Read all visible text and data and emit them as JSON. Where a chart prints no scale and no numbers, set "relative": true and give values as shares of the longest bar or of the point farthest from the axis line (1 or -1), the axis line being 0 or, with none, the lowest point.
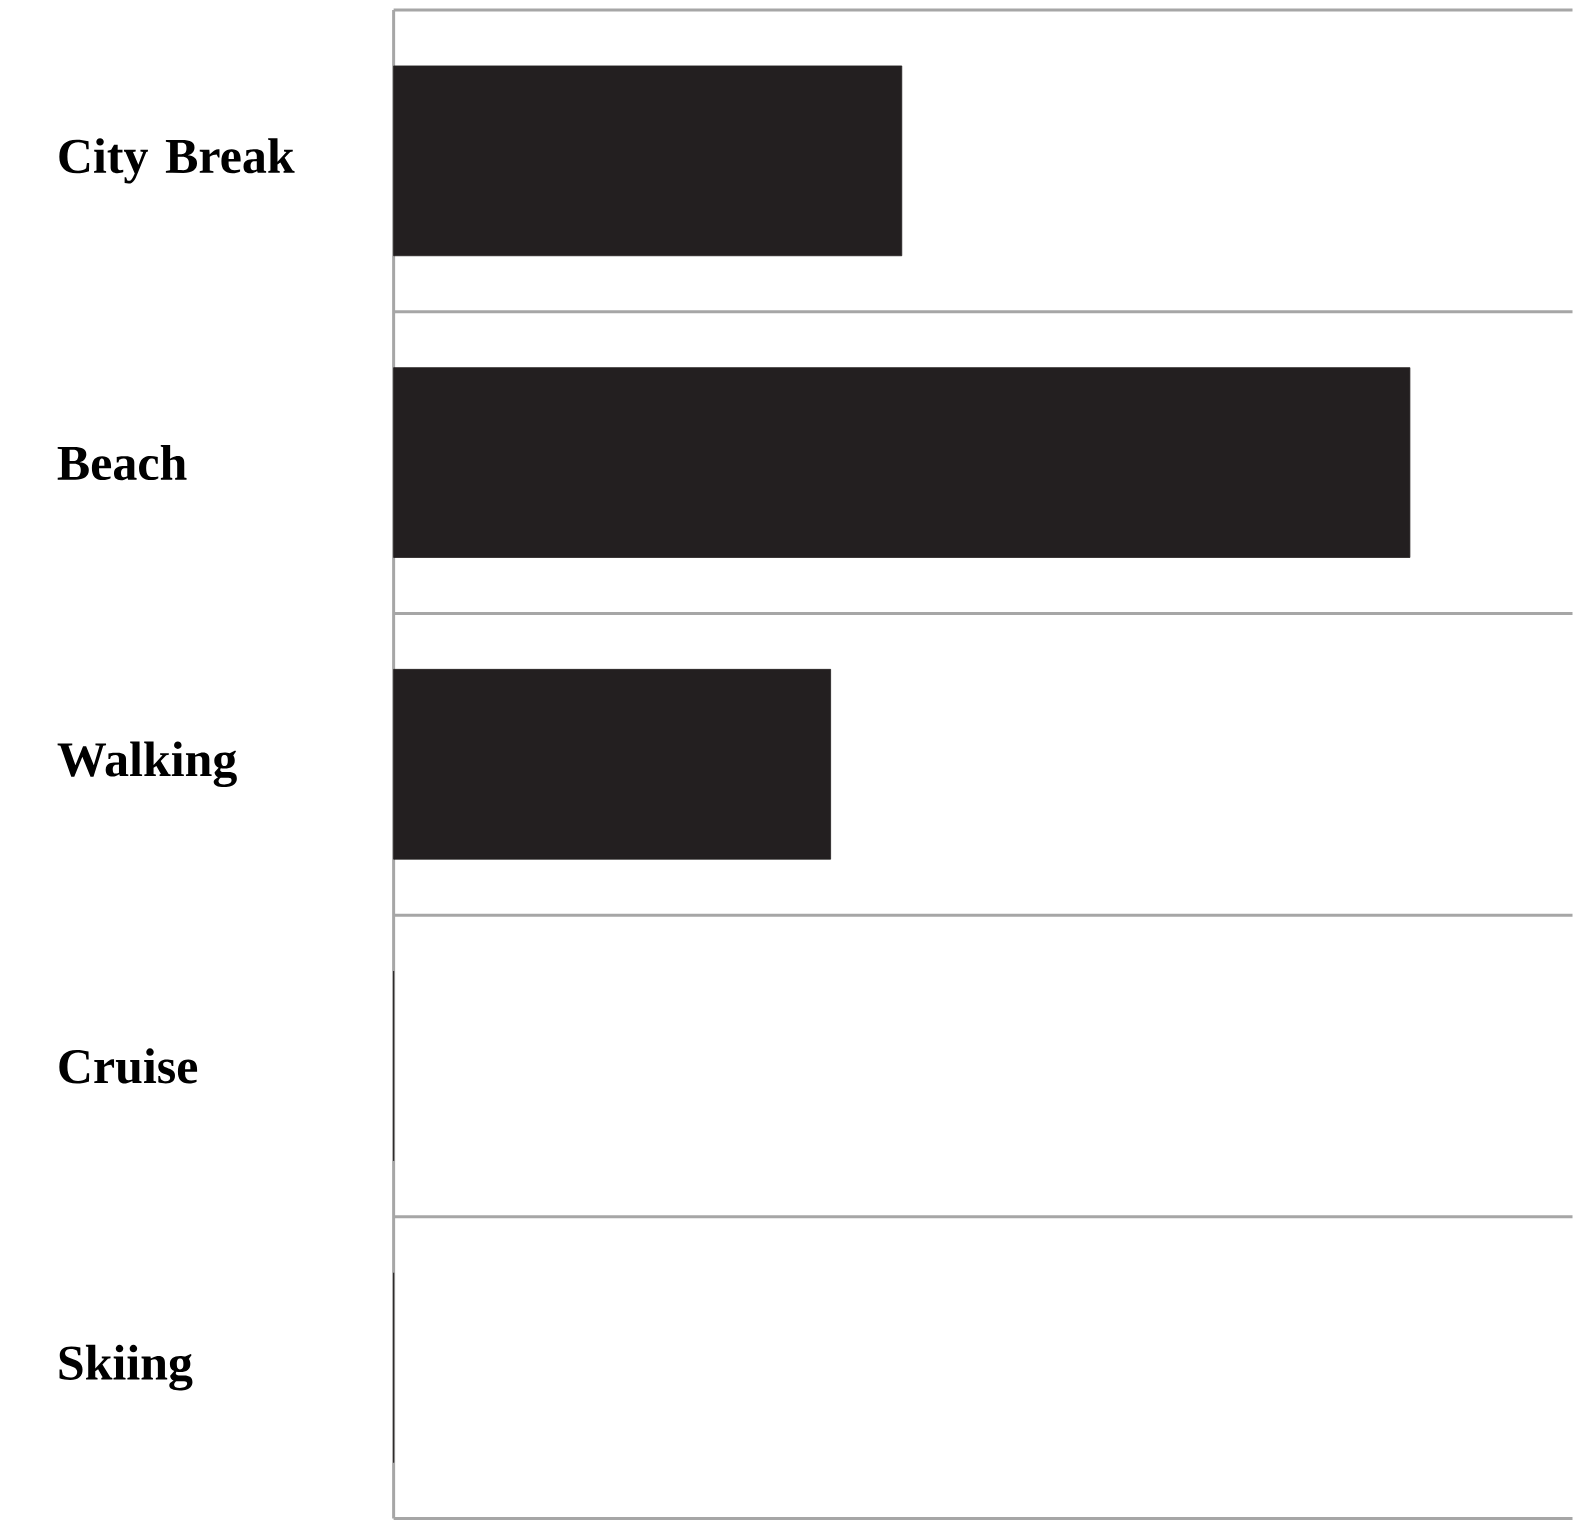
{
  "chart_data": {
    "type": "bar",
    "orientation": "horizontal",
    "relative": true,
    "categories": [
      "City Break",
      "Beach",
      "Walking",
      "Cruise",
      "Skiing"
    ],
    "values": [
      0.5,
      1,
      0.43,
      0,
      0
    ],
    "color": "#231f20"
  }
}
